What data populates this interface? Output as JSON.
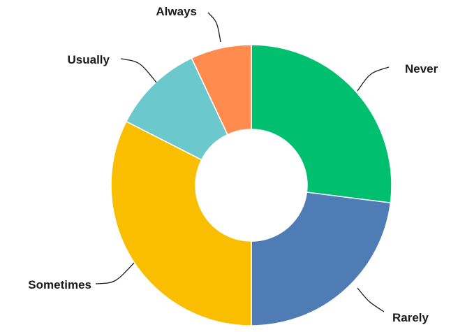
{
  "chart_data": {
    "type": "pie",
    "donut": true,
    "title": "",
    "legend": "none",
    "categories": [
      "Never",
      "Rarely",
      "Sometimes",
      "Usually",
      "Always"
    ],
    "values": [
      27,
      23,
      32.5,
      10.5,
      7
    ],
    "unit": "percent",
    "colors": [
      "#00BF6F",
      "#507CB6",
      "#F9BE00",
      "#6BC8CD",
      "#FF8B4F"
    ]
  }
}
